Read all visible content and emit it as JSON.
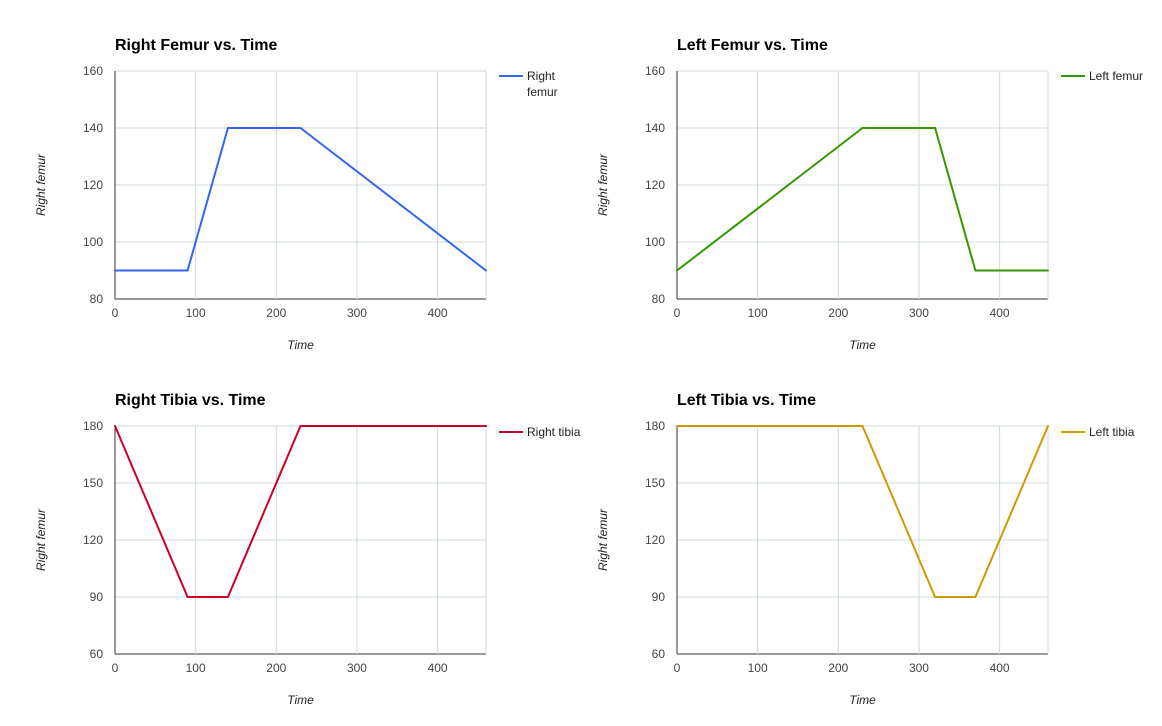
{
  "colors": {
    "right_femur": "#3366ee",
    "left_femur": "#339900",
    "right_tibia": "#cc0022",
    "left_tibia": "#cc9900",
    "grid": "#cfd8dc"
  },
  "chart_data": [
    {
      "type": "line",
      "title": "Right Femur vs. Time",
      "xlabel": "Time",
      "ylabel": "Right femur",
      "xlim": [
        0,
        460
      ],
      "ylim": [
        80,
        160
      ],
      "xticks": [
        0,
        100,
        200,
        300,
        400
      ],
      "yticks": [
        80,
        100,
        120,
        140,
        160
      ],
      "legend_position": "right",
      "grid": true,
      "series": [
        {
          "name": "Right femur",
          "legend_lines": [
            "Right",
            "femur"
          ],
          "color": "#3366ee",
          "x": [
            0,
            90,
            140,
            230,
            460
          ],
          "y": [
            90,
            90,
            140,
            140,
            90
          ]
        }
      ]
    },
    {
      "type": "line",
      "title": "Left Femur vs. Time",
      "xlabel": "Time",
      "ylabel": "Right femur",
      "xlim": [
        0,
        460
      ],
      "ylim": [
        80,
        160
      ],
      "xticks": [
        0,
        100,
        200,
        300,
        400
      ],
      "yticks": [
        80,
        100,
        120,
        140,
        160
      ],
      "legend_position": "right",
      "grid": true,
      "series": [
        {
          "name": "Left femur",
          "legend_lines": [
            "Left femur"
          ],
          "color": "#339900",
          "x": [
            0,
            230,
            320,
            370,
            460
          ],
          "y": [
            90,
            140,
            140,
            90,
            90
          ]
        }
      ]
    },
    {
      "type": "line",
      "title": "Right Tibia vs. Time",
      "xlabel": "Time",
      "ylabel": "Right femur",
      "xlim": [
        0,
        460
      ],
      "ylim": [
        60,
        180
      ],
      "xticks": [
        0,
        100,
        200,
        300,
        400
      ],
      "yticks": [
        60,
        90,
        120,
        150,
        180
      ],
      "legend_position": "right",
      "grid": true,
      "series": [
        {
          "name": "Right tibia",
          "legend_lines": [
            "Right tibia"
          ],
          "color": "#cc0022",
          "x": [
            0,
            90,
            140,
            230,
            460
          ],
          "y": [
            180,
            90,
            90,
            180,
            180
          ]
        }
      ]
    },
    {
      "type": "line",
      "title": "Left Tibia vs. Time",
      "xlabel": "Time",
      "ylabel": "Right femur",
      "xlim": [
        0,
        460
      ],
      "ylim": [
        60,
        180
      ],
      "xticks": [
        0,
        100,
        200,
        300,
        400
      ],
      "yticks": [
        60,
        90,
        120,
        150,
        180
      ],
      "legend_position": "right",
      "grid": true,
      "series": [
        {
          "name": "Left tibia",
          "legend_lines": [
            "Left tibia"
          ],
          "color": "#cc9900",
          "x": [
            0,
            230,
            320,
            370,
            460
          ],
          "y": [
            180,
            180,
            90,
            90,
            180
          ]
        }
      ]
    }
  ]
}
